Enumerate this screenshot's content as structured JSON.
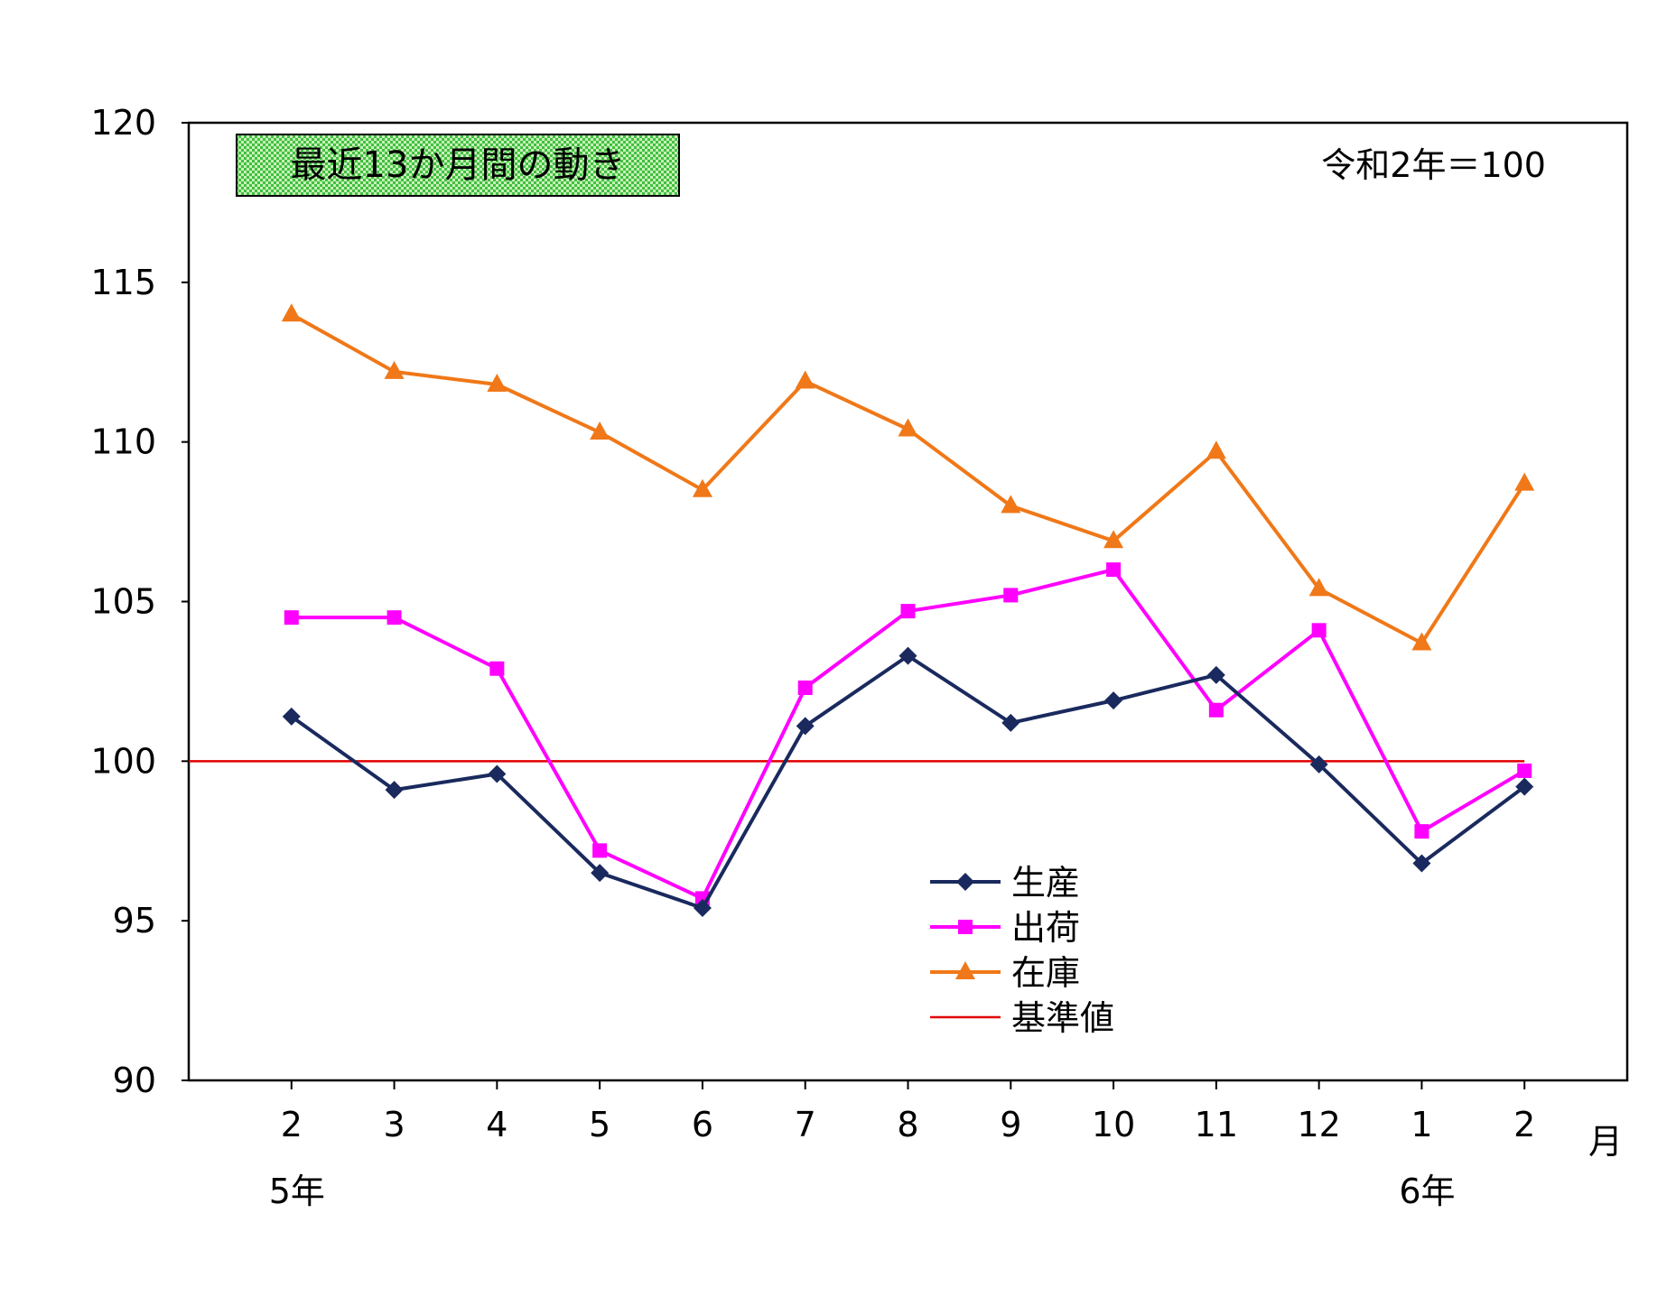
{
  "chart_data": {
    "type": "line",
    "title": "最近13か月間の動き",
    "note": "令和2年＝100",
    "categories": [
      "2",
      "3",
      "4",
      "5",
      "6",
      "7",
      "8",
      "9",
      "10",
      "11",
      "12",
      "1",
      "2"
    ],
    "x_unit": "月",
    "year_labels": [
      {
        "label": "5年",
        "category_index": 0
      },
      {
        "label": "6年",
        "category_index": 11
      }
    ],
    "ylim": [
      90,
      120
    ],
    "yticks": [
      90,
      95,
      100,
      105,
      110,
      115,
      120
    ],
    "series": [
      {
        "name": "生産",
        "marker": "diamond",
        "color": "#1a2a5e",
        "values": [
          101.4,
          99.1,
          99.6,
          96.5,
          95.4,
          101.1,
          103.3,
          101.2,
          101.9,
          102.7,
          99.9,
          96.8,
          99.2
        ]
      },
      {
        "name": "出荷",
        "marker": "square",
        "color": "#ff00ff",
        "values": [
          104.5,
          104.5,
          102.9,
          97.2,
          95.7,
          102.3,
          104.7,
          105.2,
          106.0,
          101.6,
          104.1,
          97.8,
          99.7
        ]
      },
      {
        "name": "在庫",
        "marker": "triangle",
        "color": "#f07818",
        "values": [
          114.0,
          112.2,
          111.8,
          110.3,
          108.5,
          111.9,
          110.4,
          108.0,
          106.9,
          109.7,
          105.4,
          103.7,
          108.7
        ]
      }
    ],
    "reference_line": {
      "name": "基準値",
      "value": 100,
      "color": "#e00000"
    },
    "legend_position": "bottom-center",
    "grid": false
  }
}
